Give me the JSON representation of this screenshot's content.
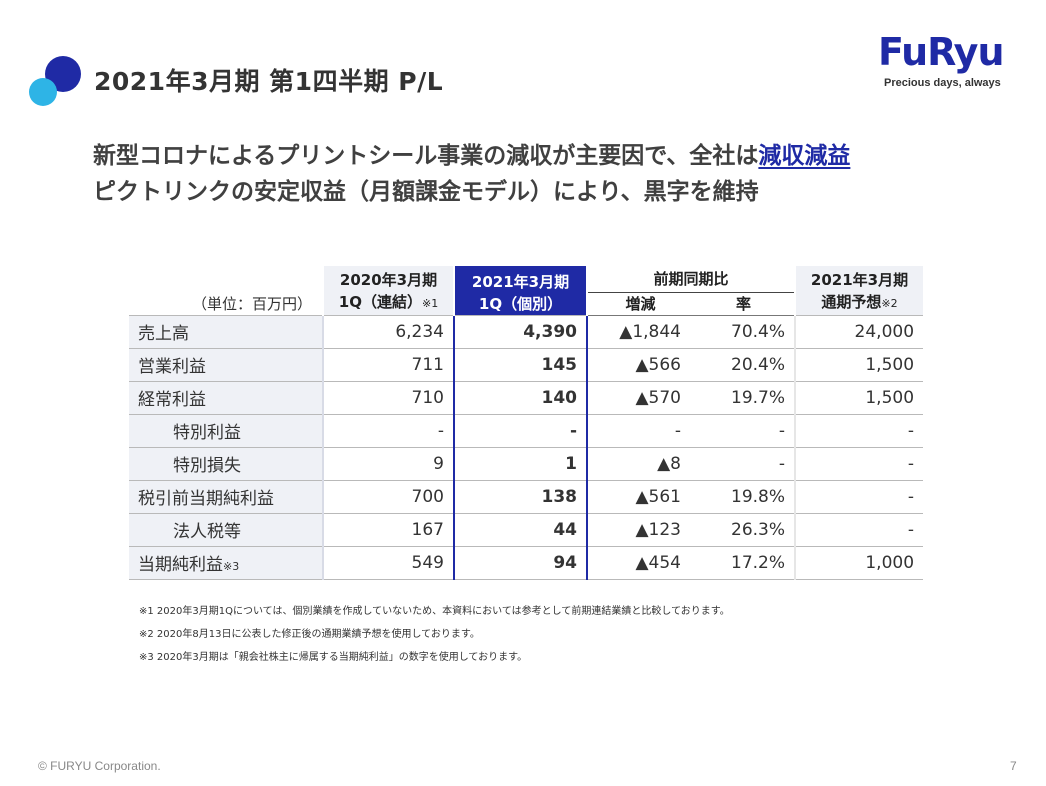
{
  "header": {
    "title": "2021年3月期 第1四半期 P/L"
  },
  "logo": {
    "wordmark": "FuRyu",
    "tagline": "Precious days, always"
  },
  "headline": {
    "line1_prefix": "新型コロナによるプリントシール事業の減収が主要因で、全社は",
    "line1_highlight": "減収減益",
    "line2": "ピクトリンクの安定収益（月額課金モデル）により、黒字を維持"
  },
  "table": {
    "unit_label": "（単位：百万円）",
    "col_prev": {
      "line1": "2020年3月期",
      "line2": "1Q（連結）",
      "note": "※1"
    },
    "col_cur": {
      "line1": "2021年3月期",
      "line2": "1Q（個別）"
    },
    "col_comp": {
      "title": "前期同期比",
      "diff": "増減",
      "rate": "率"
    },
    "col_fc": {
      "line1": "2021年3月期",
      "line2": "通期予想",
      "note": "※2"
    },
    "rows": [
      {
        "label": "売上高",
        "note": "",
        "prev": "6,234",
        "cur": "4,390",
        "diff": "▲1,844",
        "rate": "70.4%",
        "fc": "24,000"
      },
      {
        "label": "営業利益",
        "note": "",
        "prev": "711",
        "cur": "145",
        "diff": "▲566",
        "rate": "20.4%",
        "fc": "1,500"
      },
      {
        "label": "経常利益",
        "note": "",
        "prev": "710",
        "cur": "140",
        "diff": "▲570",
        "rate": "19.7%",
        "fc": "1,500"
      },
      {
        "label": "特別利益",
        "note": "",
        "prev": "-",
        "cur": "-",
        "diff": "-",
        "rate": "-",
        "fc": "-"
      },
      {
        "label": "特別損失",
        "note": "",
        "prev": "9",
        "cur": "1",
        "diff": "▲8",
        "rate": "-",
        "fc": "-"
      },
      {
        "label": "税引前当期純利益",
        "note": "",
        "prev": "700",
        "cur": "138",
        "diff": "▲561",
        "rate": "19.8%",
        "fc": "-"
      },
      {
        "label": "法人税等",
        "note": "",
        "prev": "167",
        "cur": "44",
        "diff": "▲123",
        "rate": "26.3%",
        "fc": "-"
      },
      {
        "label": "当期純利益",
        "note": "※3",
        "prev": "549",
        "cur": "94",
        "diff": "▲454",
        "rate": "17.2%",
        "fc": "1,000"
      }
    ]
  },
  "notes": [
    "※1 2020年3月期1Qについては、個別業績を作成していないため、本資料においては参考として前期連結業績と比較しております。",
    "※2 2020年8月13日に公表した修正後の通期業績予想を使用しております。",
    "※3 2020年3月期は「親会社株主に帰属する当期純利益」の数字を使用しております。"
  ],
  "footer": {
    "copyright": "© FURYU Corporation.",
    "page_number": "7"
  },
  "colors": {
    "brand_navy": "#1f2aa5",
    "accent_cyan": "#2eb4e6",
    "label_bg": "#eff1f6"
  }
}
